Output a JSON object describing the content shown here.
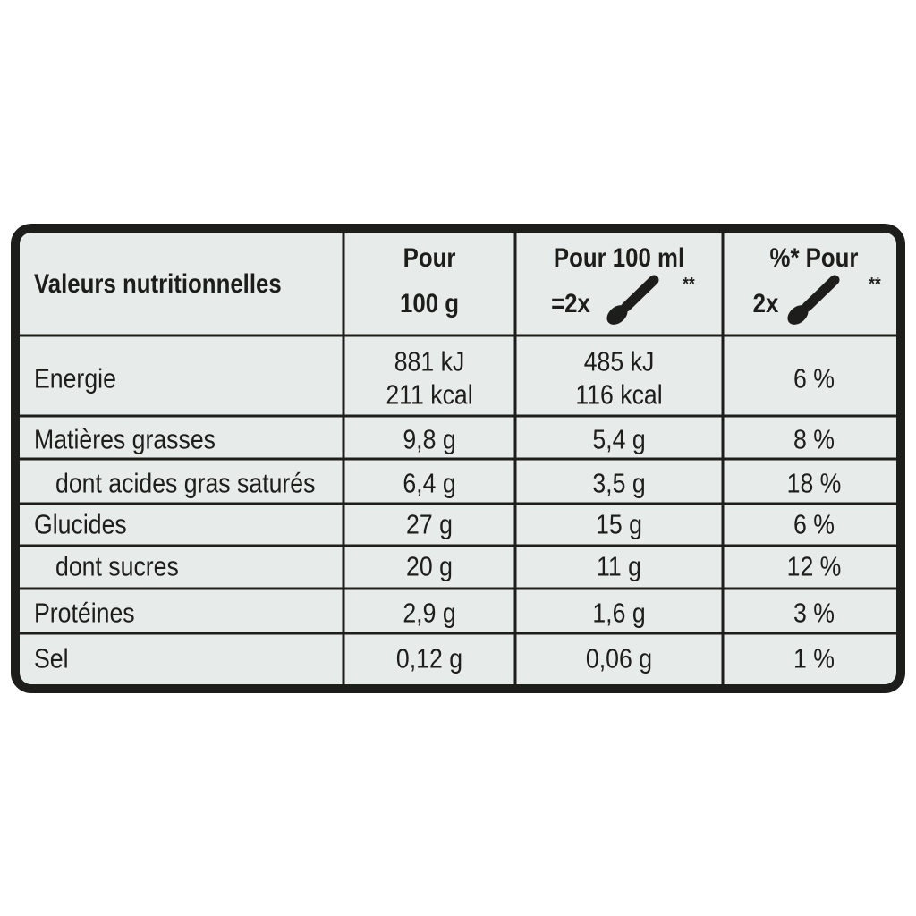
{
  "header": {
    "title": "Valeurs nutritionnelles",
    "columns": [
      {
        "line1": "Pour",
        "line2": "100 g"
      },
      {
        "line1": "Pour 100 ml",
        "line2": "=2x",
        "note": "**"
      },
      {
        "line1": "%* Pour",
        "line2": "2x",
        "note": "**"
      }
    ]
  },
  "rows": [
    {
      "label": "Energie",
      "cells": [
        [
          "881 kJ",
          "211 kcal"
        ],
        [
          "485 kJ",
          "116 kcal"
        ],
        [
          "6 %"
        ]
      ]
    },
    {
      "label": "Matières grasses",
      "cells": [
        [
          "9,8 g"
        ],
        [
          "5,4 g"
        ],
        [
          "8 %"
        ]
      ]
    },
    {
      "label": "dont acides gras saturés",
      "cells": [
        [
          "6,4 g"
        ],
        [
          "3,5 g"
        ],
        [
          "18 %"
        ]
      ]
    },
    {
      "label": "Glucides",
      "cells": [
        [
          "27 g"
        ],
        [
          "15 g"
        ],
        [
          "6 %"
        ]
      ]
    },
    {
      "label": "dont sucres",
      "cells": [
        [
          "20 g"
        ],
        [
          "11 g"
        ],
        [
          "12 %"
        ]
      ]
    },
    {
      "label": "Protéines",
      "cells": [
        [
          "2,9 g"
        ],
        [
          "1,6 g"
        ],
        [
          "3 %"
        ]
      ]
    },
    {
      "label": "Sel",
      "cells": [
        [
          "0,12 g"
        ],
        [
          "0,06 g"
        ],
        [
          "1 %"
        ]
      ]
    }
  ]
}
